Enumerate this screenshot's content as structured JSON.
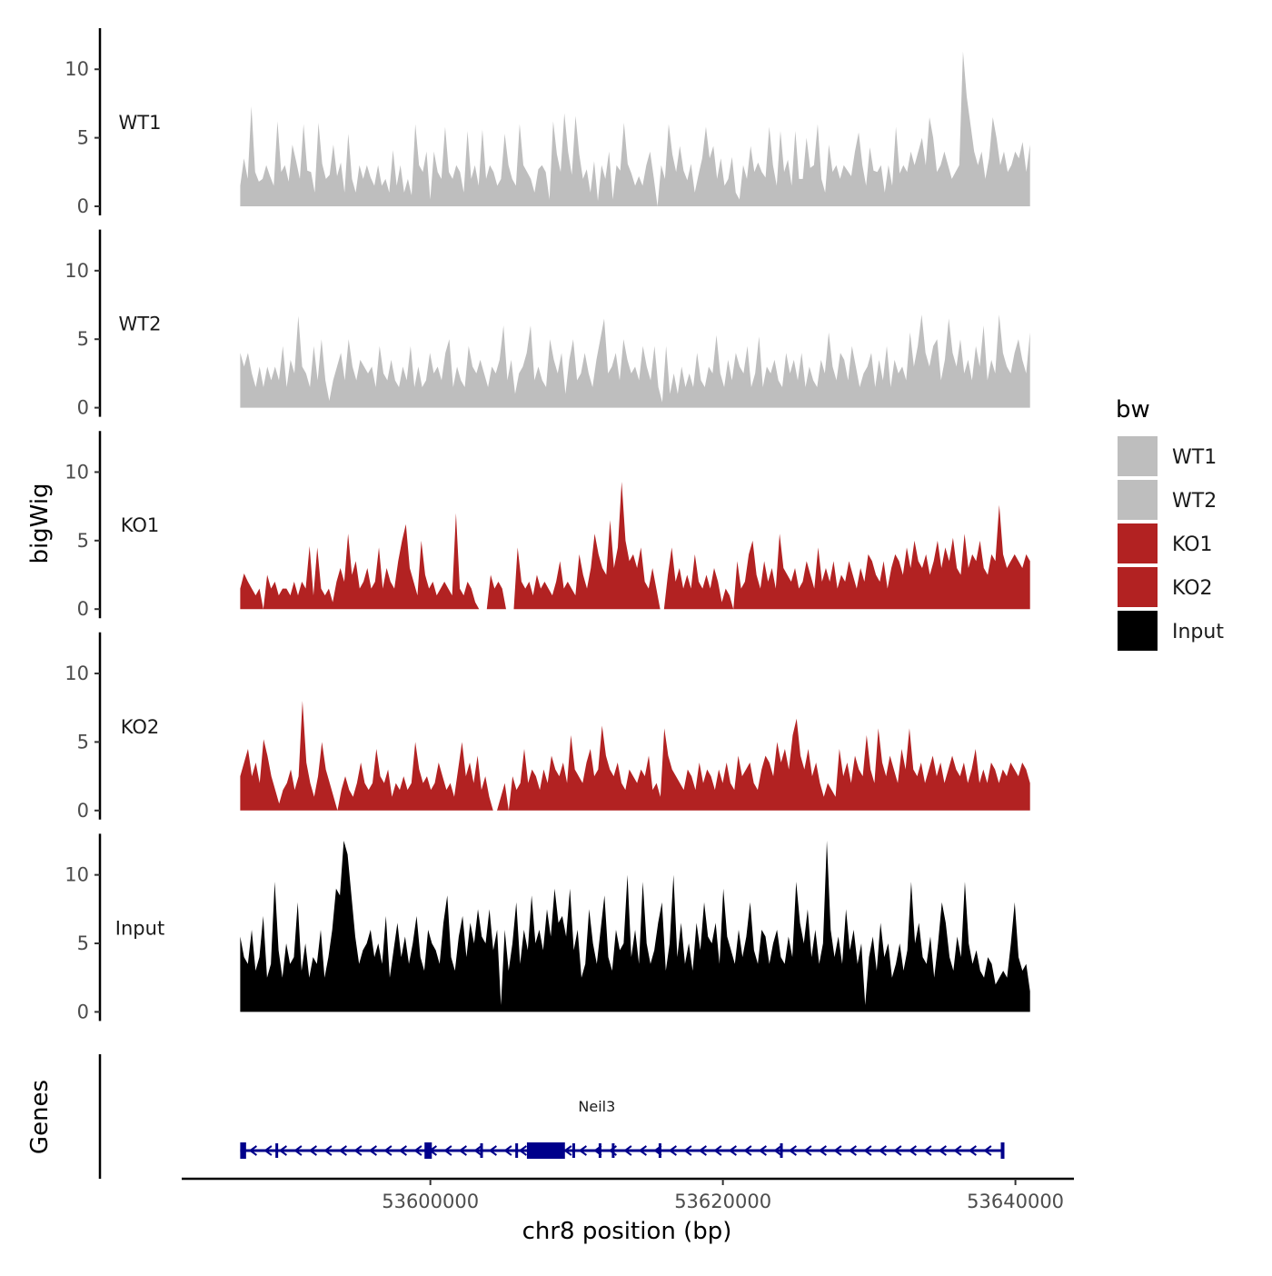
{
  "chart_data": {
    "type": "area",
    "description_x": "chr8 position",
    "xlabel": "chr8 position (bp)",
    "ylabel": "bigWig",
    "genes_label": "Genes",
    "xlim": [
      53583000,
      53644000
    ],
    "x_start": 53587000,
    "x_end": 53641000,
    "x_ticks": [
      53600000,
      53620000,
      53640000
    ],
    "x_tick_labels": [
      "53600000",
      "53620000",
      "53640000"
    ],
    "ylim": [
      0,
      13
    ],
    "y_ticks": [
      0,
      5,
      10
    ],
    "y_tick_labels": [
      "0",
      "5",
      "10"
    ],
    "legend": {
      "title": "bw",
      "entries": [
        {
          "label": "WT1",
          "color": "#bebebe"
        },
        {
          "label": "WT2",
          "color": "#bebebe"
        },
        {
          "label": "KO1",
          "color": "#b22222"
        },
        {
          "label": "KO2",
          "color": "#b22222"
        },
        {
          "label": "Input",
          "color": "#000000"
        }
      ]
    },
    "series": [
      {
        "name": "WT1",
        "color": "#bebebe",
        "values": [
          1.5,
          3.5,
          2.0,
          7.3,
          2.5,
          1.8,
          2.0,
          3.0,
          2.2,
          1.5,
          6.2,
          2.5,
          3.0,
          1.8,
          4.5,
          3.3,
          2.0,
          6.0,
          2.6,
          2.5,
          1.0,
          6.1,
          3.1,
          2.0,
          2.3,
          4.5,
          2.2,
          3.2,
          1.0,
          5.3,
          2.0,
          1.0,
          3.0,
          2.0,
          3.0,
          2.1,
          1.5,
          3.0,
          1.5,
          2.0,
          1.0,
          4.1,
          1.5,
          3.0,
          1.0,
          2.0,
          0.8,
          6.0,
          3.0,
          2.5,
          4.0,
          0.5,
          4.0,
          2.5,
          2.0,
          5.8,
          2.5,
          2.0,
          3.0,
          2.5,
          1.0,
          5.5,
          2.0,
          3.0,
          1.5,
          5.6,
          2.0,
          3.0,
          2.5,
          1.5,
          2.0,
          5.3,
          3.0,
          2.0,
          1.5,
          6.0,
          3.0,
          2.5,
          2.0,
          1.0,
          2.7,
          3.0,
          2.5,
          0.5,
          6.2,
          3.8,
          2.5,
          6.8,
          4.0,
          2.3,
          6.6,
          3.8,
          2.0,
          2.7,
          1.0,
          3.3,
          0.4,
          3.0,
          2.0,
          4.0,
          0.5,
          3.0,
          2.6,
          6.1,
          3.1,
          2.4,
          1.5,
          2.2,
          1.5,
          3.0,
          4.0,
          2.1,
          0.0,
          3.0,
          2.0,
          6.0,
          3.8,
          2.5,
          4.4,
          2.6,
          1.9,
          3.1,
          1.0,
          2.3,
          3.5,
          5.8,
          3.5,
          4.4,
          2.0,
          3.5,
          1.5,
          2.0,
          3.6,
          1.0,
          0.5,
          3.0,
          2.0,
          4.4,
          2.5,
          3.2,
          2.5,
          2.1,
          5.8,
          3.0,
          1.5,
          5.5,
          2.5,
          3.4,
          1.5,
          5.5,
          2.0,
          2.0,
          5.0,
          2.8,
          3.0,
          6.0,
          2.0,
          1.0,
          4.5,
          2.5,
          3.0,
          2.0,
          3.0,
          2.6,
          2.2,
          4.0,
          5.4,
          3.0,
          1.5,
          4.3,
          2.6,
          2.5,
          3.0,
          1.0,
          3.0,
          1.5,
          5.8,
          2.4,
          3.0,
          2.5,
          4.0,
          3.0,
          4.0,
          5.0,
          3.0,
          6.5,
          5.0,
          2.5,
          3.0,
          4.0,
          3.0,
          2.0,
          2.5,
          3.0,
          11.3,
          8.0,
          6.0,
          4.0,
          3.0,
          4.0,
          2.0,
          3.5,
          6.5,
          5.0,
          3.0,
          4.0,
          2.5,
          3.0,
          4.0,
          3.5,
          4.7,
          2.5,
          4.5
        ]
      },
      {
        "name": "WT2",
        "color": "#bebebe",
        "values": [
          4.0,
          3.0,
          4.0,
          2.5,
          1.5,
          3.0,
          1.5,
          3.0,
          2.0,
          3.0,
          2.0,
          4.5,
          1.5,
          3.5,
          2.5,
          6.7,
          3.0,
          2.5,
          1.5,
          4.5,
          2.0,
          5.0,
          2.0,
          0.5,
          2.0,
          3.0,
          4.0,
          2.0,
          5.0,
          3.0,
          2.0,
          3.5,
          3.0,
          2.5,
          3.0,
          1.5,
          4.5,
          2.5,
          2.0,
          3.5,
          2.0,
          1.5,
          3.0,
          2.0,
          4.5,
          1.5,
          3.0,
          1.5,
          2.0,
          4.0,
          2.5,
          3.0,
          2.0,
          4.0,
          5.0,
          1.5,
          3.0,
          2.0,
          1.5,
          4.5,
          3.0,
          2.5,
          3.5,
          2.5,
          1.5,
          3.0,
          2.5,
          3.5,
          6.0,
          2.0,
          3.5,
          1.0,
          2.5,
          3.0,
          4.0,
          6.0,
          2.0,
          3.0,
          2.0,
          1.5,
          5.0,
          3.5,
          2.5,
          4.0,
          1.0,
          3.5,
          5.0,
          2.0,
          2.5,
          4.0,
          2.5,
          1.5,
          3.5,
          5.0,
          6.5,
          2.5,
          3.0,
          4.0,
          2.0,
          5.0,
          3.5,
          2.5,
          3.0,
          2.0,
          4.5,
          3.0,
          2.0,
          4.5,
          1.5,
          0.4,
          4.5,
          1.0,
          2.5,
          1.0,
          3.0,
          1.5,
          2.5,
          1.5,
          4.0,
          2.0,
          1.5,
          3.0,
          2.5,
          5.3,
          2.5,
          1.5,
          3.5,
          2.0,
          4.0,
          3.0,
          2.5,
          4.5,
          1.5,
          2.5,
          5.2,
          1.5,
          3.0,
          2.5,
          3.5,
          2.0,
          1.5,
          4.0,
          2.5,
          3.5,
          2.0,
          4.0,
          1.5,
          3.0,
          2.0,
          1.5,
          3.5,
          2.5,
          5.5,
          3.0,
          2.0,
          4.0,
          3.5,
          2.0,
          4.5,
          3.0,
          1.5,
          2.5,
          3.0,
          4.0,
          1.5,
          3.5,
          2.0,
          4.5,
          1.5,
          3.5,
          2.5,
          3.0,
          2.0,
          5.5,
          3.0,
          4.5,
          6.8,
          4.0,
          3.0,
          4.5,
          5.0,
          2.0,
          3.5,
          6.5,
          4.0,
          3.0,
          5.0,
          2.5,
          3.5,
          2.0,
          4.5,
          3.0,
          6.0,
          2.0,
          3.5,
          2.5,
          6.8,
          4.0,
          3.0,
          2.5,
          4.0,
          5.0,
          3.5,
          2.5,
          5.5
        ]
      },
      {
        "name": "KO1",
        "color": "#b22222",
        "values": [
          1.5,
          2.6,
          2.0,
          1.5,
          1.0,
          1.5,
          0.0,
          2.5,
          1.5,
          2.0,
          1.0,
          1.5,
          1.5,
          1.0,
          2.0,
          1.0,
          2.0,
          1.5,
          4.6,
          1.0,
          4.5,
          1.5,
          1.0,
          1.5,
          0.5,
          2.0,
          3.0,
          2.0,
          5.5,
          2.5,
          3.5,
          1.5,
          2.0,
          3.0,
          1.5,
          2.0,
          4.5,
          1.5,
          3.0,
          2.0,
          1.5,
          3.5,
          5.0,
          6.2,
          3.0,
          2.0,
          1.0,
          5.0,
          2.5,
          1.5,
          2.0,
          1.0,
          1.5,
          2.0,
          1.5,
          1.0,
          7.0,
          1.5,
          1.0,
          2.0,
          1.5,
          0.5,
          0.0,
          0.0,
          0.0,
          2.5,
          1.5,
          2.0,
          1.5,
          0.0,
          0.0,
          0.0,
          4.5,
          2.0,
          1.5,
          2.0,
          1.0,
          2.5,
          1.5,
          2.0,
          1.5,
          1.0,
          2.0,
          3.5,
          1.5,
          2.0,
          1.5,
          1.0,
          4.0,
          2.5,
          1.5,
          3.0,
          5.5,
          4.0,
          3.0,
          2.5,
          6.5,
          3.0,
          4.5,
          9.3,
          5.0,
          3.5,
          4.0,
          3.0,
          4.5,
          2.0,
          1.5,
          3.0,
          1.5,
          0.0,
          0.0,
          2.5,
          4.5,
          2.0,
          3.0,
          1.5,
          2.5,
          1.5,
          4.0,
          2.0,
          1.5,
          2.5,
          1.5,
          3.0,
          2.0,
          0.5,
          1.5,
          1.0,
          0.0,
          3.5,
          1.5,
          2.0,
          4.0,
          5.0,
          2.5,
          1.5,
          3.5,
          2.0,
          3.0,
          1.5,
          5.5,
          3.0,
          2.5,
          2.0,
          3.0,
          1.5,
          2.0,
          3.5,
          2.5,
          1.5,
          4.5,
          2.0,
          3.0,
          2.0,
          3.5,
          1.5,
          2.5,
          2.0,
          3.5,
          2.5,
          1.5,
          3.0,
          2.0,
          4.0,
          3.5,
          2.5,
          2.0,
          3.5,
          1.5,
          3.0,
          4.0,
          3.5,
          2.5,
          4.5,
          3.0,
          5.0,
          3.5,
          3.0,
          4.0,
          2.5,
          3.5,
          5.0,
          3.0,
          4.5,
          3.5,
          5.2,
          3.0,
          2.5,
          5.5,
          3.0,
          4.0,
          3.5,
          5.0,
          3.0,
          2.5,
          4.0,
          3.5,
          7.6,
          4.0,
          3.0,
          3.5,
          4.0,
          3.5,
          3.0,
          4.0,
          3.5
        ]
      },
      {
        "name": "KO2",
        "color": "#b22222",
        "values": [
          2.5,
          3.5,
          4.5,
          2.5,
          3.5,
          2.0,
          5.2,
          4.0,
          2.5,
          1.5,
          0.5,
          1.5,
          2.0,
          3.0,
          1.5,
          2.5,
          8.0,
          3.5,
          2.0,
          1.0,
          2.5,
          5.0,
          3.0,
          2.0,
          1.0,
          0.0,
          1.5,
          2.5,
          1.5,
          1.0,
          2.0,
          3.5,
          2.0,
          1.5,
          2.0,
          4.5,
          2.5,
          2.0,
          3.0,
          1.0,
          2.0,
          1.5,
          2.5,
          1.5,
          2.0,
          5.0,
          3.0,
          2.0,
          2.5,
          1.5,
          2.0,
          3.5,
          2.5,
          1.5,
          2.0,
          1.0,
          3.0,
          5.0,
          2.5,
          3.5,
          2.0,
          4.0,
          1.5,
          2.5,
          1.0,
          0.0,
          0.0,
          1.0,
          2.0,
          0.0,
          2.5,
          1.5,
          2.0,
          4.5,
          2.0,
          3.0,
          2.5,
          1.5,
          3.0,
          2.0,
          4.0,
          3.0,
          2.5,
          3.5,
          2.0,
          5.5,
          3.0,
          2.5,
          2.0,
          3.5,
          4.5,
          2.5,
          3.0,
          6.2,
          4.0,
          3.0,
          2.5,
          3.5,
          2.0,
          1.5,
          3.0,
          2.5,
          2.0,
          3.0,
          2.5,
          4.0,
          1.5,
          2.0,
          1.0,
          6.0,
          4.0,
          3.0,
          2.5,
          2.0,
          1.5,
          3.0,
          2.5,
          1.5,
          3.5,
          2.0,
          3.0,
          2.5,
          1.5,
          3.0,
          2.0,
          3.5,
          2.0,
          1.5,
          4.0,
          2.5,
          3.0,
          3.5,
          2.0,
          1.5,
          3.0,
          4.0,
          3.5,
          2.5,
          5.0,
          3.5,
          4.5,
          3.0,
          5.5,
          6.7,
          4.0,
          3.0,
          4.5,
          2.5,
          3.5,
          2.0,
          1.0,
          2.0,
          1.5,
          1.0,
          4.5,
          2.5,
          3.5,
          2.0,
          4.0,
          3.0,
          2.5,
          5.5,
          3.0,
          2.0,
          6.0,
          3.5,
          2.5,
          4.0,
          3.0,
          2.0,
          4.5,
          3.0,
          6.0,
          3.0,
          2.5,
          3.5,
          2.0,
          3.0,
          4.0,
          2.5,
          3.5,
          2.0,
          3.0,
          4.0,
          3.0,
          2.5,
          3.5,
          2.0,
          3.0,
          4.5,
          2.0,
          3.0,
          2.0,
          3.5,
          3.0,
          2.0,
          3.0,
          2.5,
          3.5,
          3.0,
          2.5,
          3.5,
          3.0,
          2.0
        ]
      },
      {
        "name": "Input",
        "color": "#000000",
        "values": [
          5.5,
          4.0,
          3.5,
          6.0,
          3.0,
          4.0,
          7.0,
          2.5,
          3.5,
          9.5,
          4.5,
          2.5,
          5.0,
          3.5,
          4.0,
          8.0,
          3.0,
          5.0,
          2.5,
          4.0,
          3.5,
          6.0,
          2.5,
          4.0,
          6.0,
          9.0,
          8.5,
          12.5,
          11.5,
          8.5,
          5.5,
          3.5,
          4.5,
          5.0,
          6.0,
          4.0,
          5.0,
          3.5,
          7.0,
          2.5,
          4.5,
          6.5,
          4.0,
          5.5,
          3.5,
          5.0,
          7.0,
          4.0,
          3.0,
          6.0,
          5.0,
          4.5,
          3.5,
          6.5,
          8.5,
          4.0,
          3.0,
          5.5,
          7.0,
          4.0,
          6.5,
          5.0,
          7.5,
          5.5,
          5.0,
          7.5,
          4.5,
          6.0,
          0.5,
          6.0,
          3.0,
          5.0,
          8.0,
          3.5,
          6.0,
          4.5,
          8.5,
          5.0,
          6.0,
          4.5,
          7.5,
          5.5,
          9.0,
          6.5,
          7.0,
          5.5,
          9.0,
          4.5,
          6.0,
          2.5,
          3.5,
          7.5,
          5.0,
          3.5,
          6.0,
          8.5,
          4.0,
          3.0,
          6.0,
          4.5,
          5.0,
          10.0,
          4.0,
          6.0,
          3.5,
          9.5,
          5.0,
          3.5,
          4.5,
          6.5,
          8.0,
          3.0,
          5.0,
          10.0,
          4.0,
          6.5,
          3.5,
          5.0,
          3.0,
          6.5,
          4.5,
          8.0,
          5.5,
          5.0,
          6.5,
          3.5,
          9.0,
          5.5,
          4.5,
          3.5,
          6.0,
          4.0,
          5.5,
          8.0,
          4.5,
          3.5,
          6.0,
          5.5,
          3.5,
          5.0,
          6.0,
          4.0,
          3.5,
          5.5,
          4.0,
          9.5,
          6.5,
          5.0,
          7.5,
          4.0,
          6.0,
          3.5,
          5.0,
          12.5,
          6.0,
          4.0,
          5.5,
          3.5,
          7.5,
          4.5,
          6.0,
          3.5,
          5.0,
          0.5,
          4.0,
          5.5,
          3.0,
          6.5,
          4.0,
          5.0,
          2.5,
          3.5,
          5.0,
          3.0,
          4.5,
          9.5,
          5.0,
          6.5,
          4.0,
          3.5,
          5.5,
          2.5,
          5.0,
          8.0,
          6.5,
          4.0,
          3.0,
          5.5,
          4.0,
          9.5,
          5.0,
          3.5,
          4.5,
          3.0,
          2.5,
          4.0,
          3.5,
          2.0,
          2.5,
          3.0,
          2.5,
          5.0,
          8.0,
          4.0,
          3.0,
          3.5,
          1.5
        ]
      }
    ],
    "genes": [
      {
        "name": "Neil3",
        "strand": "-",
        "color": "#00008b",
        "start": 53587000,
        "end": 53639200,
        "exons": [
          [
            53587000,
            53587400
          ],
          [
            53599600,
            53600100
          ],
          [
            53606600,
            53609200
          ],
          [
            53639000,
            53639200
          ]
        ]
      }
    ]
  }
}
